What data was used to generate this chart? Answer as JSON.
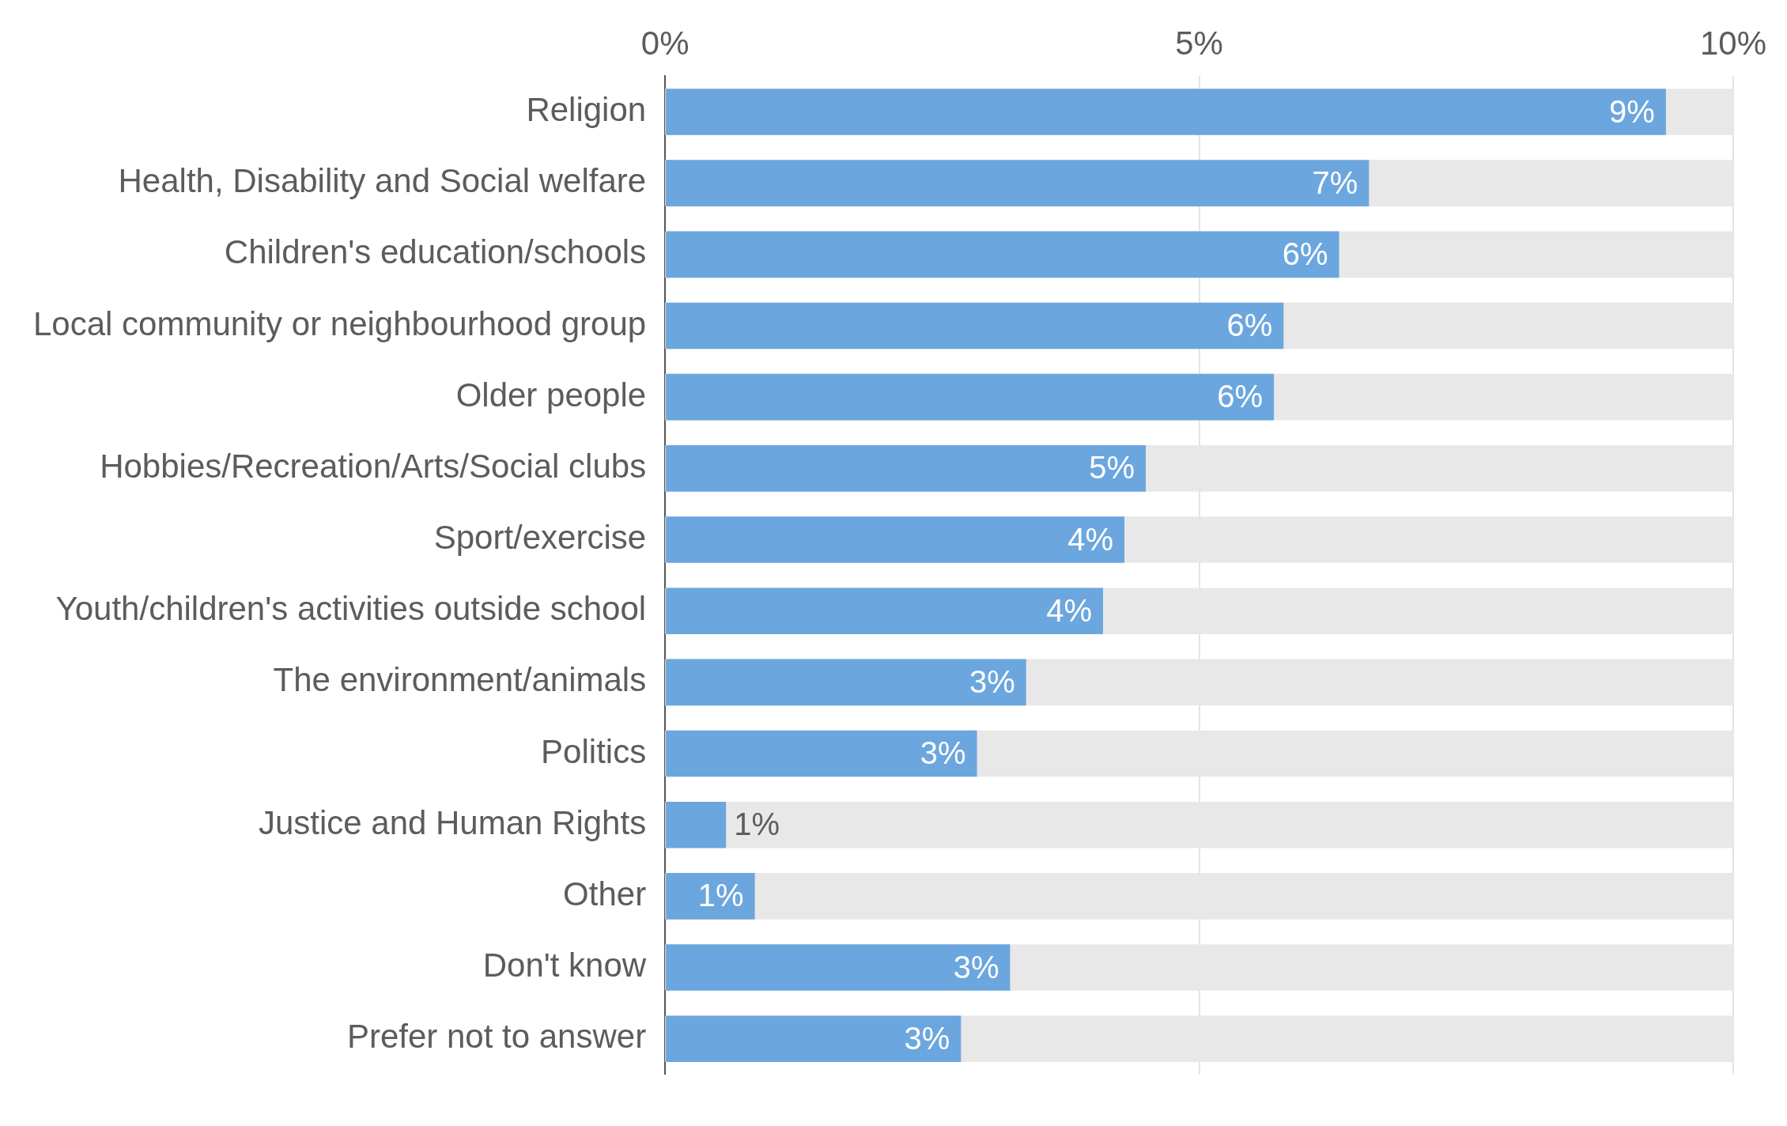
{
  "chart_data": {
    "type": "bar",
    "orientation": "horizontal",
    "categories": [
      "Religion",
      "Health, Disability and Social welfare",
      "Children's education/schools",
      "Local community or neighbourhood group",
      "Older people",
      "Hobbies/Recreation/Arts/Social clubs",
      "Sport/exercise",
      "Youth/children's activities outside school",
      "The environment/animals",
      "Politics",
      "Justice and Human Rights",
      "Other",
      "Don't know",
      "Prefer not to answer"
    ],
    "values": [
      9.37,
      6.59,
      6.31,
      5.79,
      5.7,
      4.5,
      4.3,
      4.1,
      3.38,
      2.92,
      0.57,
      0.84,
      3.23,
      2.77
    ],
    "value_labels": [
      "9%",
      "7%",
      "6%",
      "6%",
      "6%",
      "5%",
      "4%",
      "4%",
      "3%",
      "3%",
      "1%",
      "1%",
      "3%",
      "3%"
    ],
    "color": "#6ca6de",
    "xlim": [
      0,
      10
    ],
    "xticks": [
      {
        "value": 0,
        "label": "0%"
      },
      {
        "value": 5,
        "label": "5%"
      },
      {
        "value": 10,
        "label": "10%"
      }
    ],
    "grid": "x",
    "legend": false
  }
}
